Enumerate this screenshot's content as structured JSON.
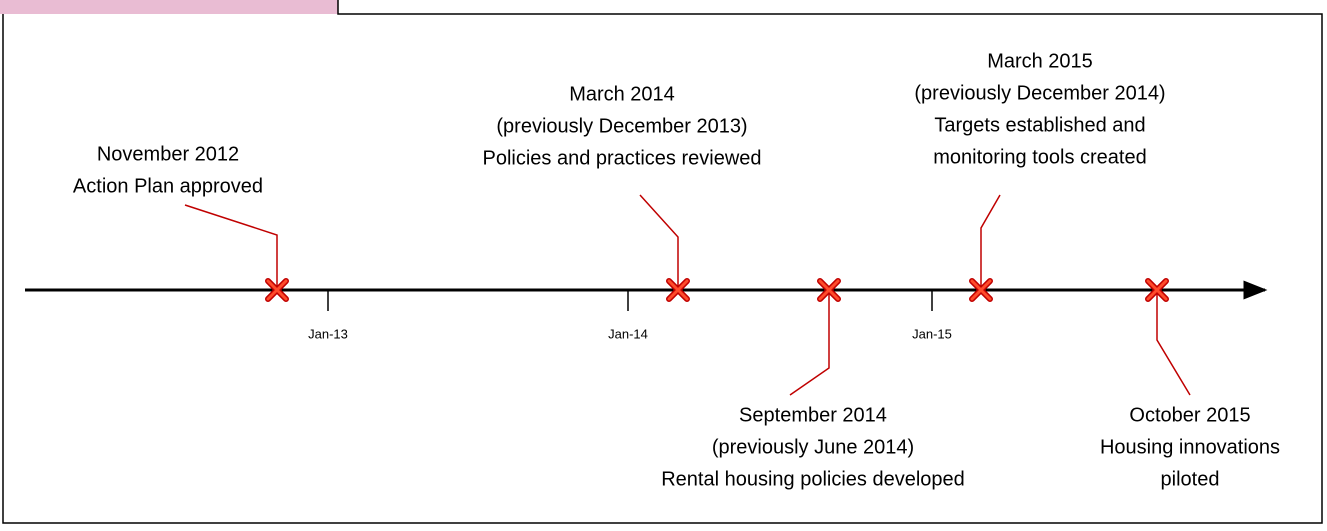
{
  "timeline": {
    "ticks": [
      "Jan-13",
      "Jan-14",
      "Jan-15"
    ],
    "events": [
      {
        "lines": [
          "November 2012",
          "Action Plan approved"
        ]
      },
      {
        "lines": [
          "March 2014",
          "(previously December 2013)",
          "Policies and practices reviewed"
        ]
      },
      {
        "lines": [
          "September 2014",
          "(previously June 2014)",
          "Rental housing policies developed"
        ]
      },
      {
        "lines": [
          "March 2015",
          "(previously December 2014)",
          "Targets established and",
          "monitoring tools created"
        ]
      },
      {
        "lines": [
          "October 2015",
          "Housing innovations",
          "piloted"
        ]
      }
    ]
  }
}
